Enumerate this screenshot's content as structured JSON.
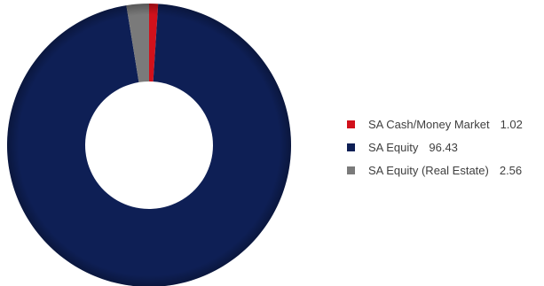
{
  "chart_data": {
    "type": "pie",
    "variant": "donut",
    "legend_position": "right",
    "start_angle_deg": 0,
    "direction": "clockwise",
    "slices": [
      {
        "label": "SA Cash/Money Market",
        "value": 1.02,
        "value_label": "1.02",
        "color": "#d1111b"
      },
      {
        "label": "SA Equity",
        "value": 96.43,
        "value_label": "96.43",
        "color": "#0e1f55"
      },
      {
        "label": "SA Equity (Real Estate)",
        "value": 2.56,
        "value_label": "2.56",
        "color": "#7a7a7a"
      }
    ]
  }
}
